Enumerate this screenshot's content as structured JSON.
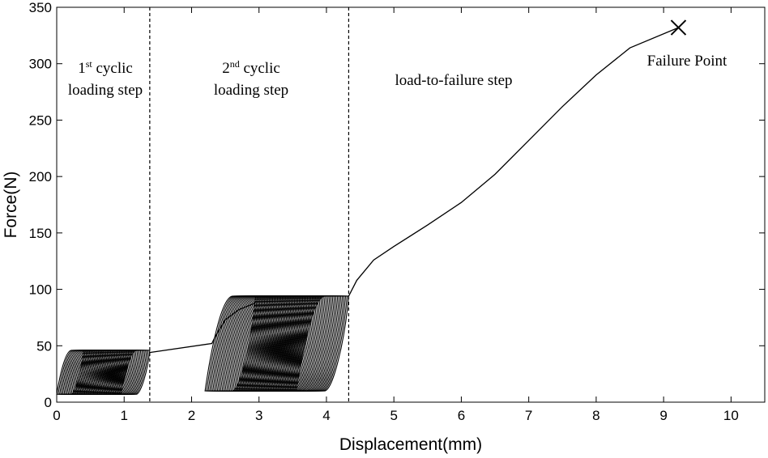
{
  "chart_data": {
    "type": "line",
    "title": "",
    "xlabel": "Displacement(mm)",
    "ylabel": "Force(N)",
    "xlim": [
      0,
      10.5
    ],
    "ylim": [
      0,
      350
    ],
    "xticks": [
      "0",
      "1",
      "2",
      "3",
      "4",
      "5",
      "6",
      "7",
      "8",
      "9",
      "10"
    ],
    "yticks": [
      "0",
      "50",
      "100",
      "150",
      "200",
      "250",
      "300",
      "350"
    ],
    "grid": false,
    "legend": "none",
    "line_color": "#000000",
    "step_boundaries_x": [
      1.38,
      4.33
    ],
    "annotations": {
      "step1_line1_pre": "1",
      "step1_line1_sup": "st",
      "step1_line1_post": " cyclic",
      "step1_line2": "loading step",
      "step2_line1_pre": "2",
      "step2_line1_sup": "nd",
      "step2_line1_post": " cyclic",
      "step2_line2": "loading step",
      "step3": "load-to-failure step",
      "failure": "Failure Point"
    },
    "failure_point": {
      "x": 9.22,
      "y": 332
    },
    "cyclic_step_1": {
      "x_start_range": [
        0.0,
        0.95
      ],
      "x_end_range": [
        0.4,
        1.38
      ],
      "y_min": 7,
      "y_max": 46,
      "cycles": 45
    },
    "transition_1": [
      [
        1.38,
        44
      ],
      [
        2.3,
        52
      ],
      [
        2.35,
        58
      ],
      [
        2.5,
        73
      ],
      [
        2.7,
        82
      ],
      [
        2.95,
        88
      ]
    ],
    "cyclic_step_2": {
      "x_start_range": [
        2.2,
        3.55
      ],
      "x_end_range": [
        2.95,
        4.33
      ],
      "y_min": 10,
      "y_max": 94,
      "cycles": 60
    },
    "load_to_failure": [
      [
        4.33,
        94
      ],
      [
        4.45,
        108
      ],
      [
        4.7,
        126
      ],
      [
        5.0,
        138
      ],
      [
        5.5,
        157
      ],
      [
        6.0,
        177
      ],
      [
        6.5,
        202
      ],
      [
        7.0,
        232
      ],
      [
        7.5,
        262
      ],
      [
        8.0,
        290
      ],
      [
        8.5,
        314
      ],
      [
        9.22,
        332
      ]
    ]
  }
}
